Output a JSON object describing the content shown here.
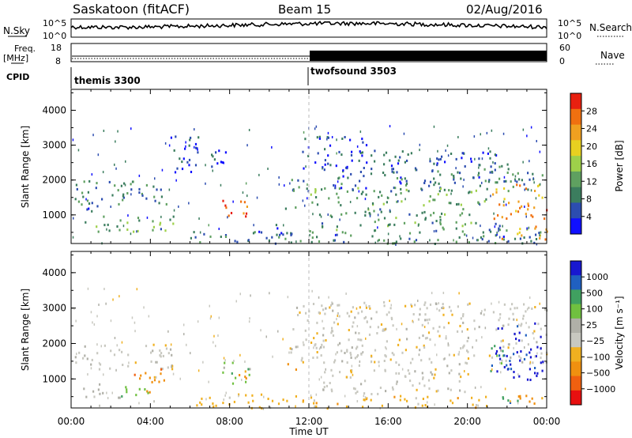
{
  "header": {
    "station": "Saskatoon (fitACF)",
    "beam": "Beam 15",
    "date": "02/Aug/2016"
  },
  "strips": {
    "nsky_label": "N.Sky",
    "nsky_tick_top": "10^5",
    "nsky_tick_bottom": "10^0",
    "nsearch_label": "N.Search",
    "nsearch_tick_top": "10^5",
    "nsearch_tick_bottom": "10^0",
    "freq_label_1": "Freq.",
    "freq_label_2": "[MHz]",
    "freq_tick_top": "18",
    "freq_tick_bottom": "8",
    "nave_label": "Nave",
    "nave_tick_top": "60",
    "nave_tick_bottom": "0",
    "cpid_label": "CPID",
    "cpid_1": "themis 3300",
    "cpid_2": "twofsound 3503"
  },
  "colors": {
    "power": [
      "#1010ff",
      "#2c4db0",
      "#3b7d5e",
      "#5fa060",
      "#9ed04a",
      "#e8d020",
      "#f0a020",
      "#f07010",
      "#e82010"
    ],
    "velocity": [
      "#e81010",
      "#f06010",
      "#f09010",
      "#f0b020",
      "#c8c8c0",
      "#b0b0a8",
      "#70c040",
      "#40a060",
      "#2060c0",
      "#1818d0"
    ]
  },
  "chart_data": [
    {
      "type": "heatmap",
      "name": "power",
      "ylabel": "Slant Range [km]",
      "xlabel": "Time UT",
      "xlim": [
        "00:00",
        "00:00"
      ],
      "ylim": [
        180,
        4600
      ],
      "xticks": [
        "00:00",
        "04:00",
        "08:00",
        "12:00",
        "16:00",
        "20:00",
        "00:00"
      ],
      "yticks": [
        "1000",
        "2000",
        "3000",
        "4000"
      ],
      "colorbar": {
        "label": "Power [dB]",
        "ticks": [
          "4",
          "8",
          "12",
          "16",
          "20",
          "24",
          "28"
        ],
        "range": [
          0,
          32
        ]
      },
      "regions": [
        {
          "t0": 0.1,
          "t1": 5.2,
          "r0": 1300,
          "r1": 2000,
          "level": 9
        },
        {
          "t0": 0.6,
          "t1": 5.3,
          "r0": 550,
          "r1": 1000,
          "level": 12
        },
        {
          "t0": 0.1,
          "t1": 1.6,
          "r0": 1100,
          "r1": 1300,
          "level": 6
        },
        {
          "t0": 7.6,
          "t1": 9.0,
          "r0": 900,
          "r1": 1500,
          "level": 26
        },
        {
          "t0": 5.0,
          "t1": 6.4,
          "r0": 2000,
          "r1": 3300,
          "level": 5
        },
        {
          "t0": 7.0,
          "t1": 8.0,
          "r0": 2200,
          "r1": 3000,
          "level": 4
        },
        {
          "t0": 6.0,
          "t1": 12.0,
          "r0": 200,
          "r1": 550,
          "level": 8
        },
        {
          "t0": 9.3,
          "t1": 11.3,
          "r0": 450,
          "r1": 800,
          "level": 6
        },
        {
          "t0": 10.7,
          "t1": 11.4,
          "r0": 1200,
          "r1": 1450,
          "level": 10
        },
        {
          "t0": 11.0,
          "t1": 23.8,
          "r0": 1700,
          "r1": 2300,
          "level": 8
        },
        {
          "t0": 11.5,
          "t1": 15.0,
          "r0": 2300,
          "r1": 3300,
          "level": 5
        },
        {
          "t0": 12.0,
          "t1": 21.0,
          "r0": 1300,
          "r1": 1800,
          "level": 13
        },
        {
          "t0": 12.5,
          "t1": 20.5,
          "r0": 600,
          "r1": 1200,
          "level": 11
        },
        {
          "t0": 12.0,
          "t1": 24.0,
          "r0": 200,
          "r1": 600,
          "level": 9
        },
        {
          "t0": 15.0,
          "t1": 21.5,
          "r0": 2300,
          "r1": 2900,
          "level": 6
        },
        {
          "t0": 21.2,
          "t1": 24.0,
          "r0": 900,
          "r1": 1900,
          "level": 24
        },
        {
          "t0": 20.8,
          "t1": 23.0,
          "r0": 1900,
          "r1": 2600,
          "level": 10
        },
        {
          "t0": 21.5,
          "t1": 24.0,
          "r0": 300,
          "r1": 700,
          "level": 22
        },
        {
          "t0": 21.0,
          "t1": 22.5,
          "r0": 400,
          "r1": 800,
          "level": 7
        }
      ]
    },
    {
      "type": "heatmap",
      "name": "velocity",
      "ylabel": "Slant Range [km]",
      "xlabel": "Time UT",
      "xlim": [
        "00:00",
        "00:00"
      ],
      "ylim": [
        180,
        4600
      ],
      "xticks": [
        "00:00",
        "04:00",
        "08:00",
        "12:00",
        "16:00",
        "20:00",
        "00:00"
      ],
      "yticks": [
        "1000",
        "2000",
        "3000",
        "4000"
      ],
      "colorbar": {
        "label": "Velocity [m s⁻¹]",
        "ticks": [
          "1000",
          "500",
          "100",
          "25",
          "−25",
          "−100",
          "−500",
          "−1000"
        ]
      },
      "regions": [
        {
          "t0": 0.1,
          "t1": 5.2,
          "r0": 1300,
          "r1": 2000,
          "cls": 4
        },
        {
          "t0": 3.1,
          "t1": 4.7,
          "r0": 600,
          "r1": 1300,
          "cls": 2
        },
        {
          "t0": 2.5,
          "t1": 4.0,
          "r0": 500,
          "r1": 900,
          "cls": 6
        },
        {
          "t0": 0.6,
          "t1": 2.5,
          "r0": 500,
          "r1": 900,
          "cls": 5
        },
        {
          "t0": 7.6,
          "t1": 8.5,
          "r0": 900,
          "r1": 1500,
          "cls": 6
        },
        {
          "t0": 8.5,
          "t1": 9.2,
          "r0": 900,
          "r1": 1400,
          "cls": 6
        },
        {
          "t0": 8.1,
          "t1": 8.8,
          "r0": 950,
          "r1": 1350,
          "cls": 2
        },
        {
          "t0": 10.8,
          "t1": 11.4,
          "r0": 1200,
          "r1": 1450,
          "cls": 2
        },
        {
          "t0": 6.0,
          "t1": 12.0,
          "r0": 200,
          "r1": 600,
          "cls": 3
        },
        {
          "t0": 11.0,
          "t1": 24.0,
          "r0": 1400,
          "r1": 3200,
          "cls": 4
        },
        {
          "t0": 12.0,
          "t1": 21.0,
          "r0": 200,
          "r1": 550,
          "cls": 3
        },
        {
          "t0": 12.5,
          "t1": 20.5,
          "r0": 600,
          "r1": 1300,
          "cls": 4
        },
        {
          "t0": 21.4,
          "t1": 23.8,
          "r0": 1000,
          "r1": 2600,
          "cls": 9
        },
        {
          "t0": 21.0,
          "t1": 22.0,
          "r0": 1200,
          "r1": 2000,
          "cls": 7
        },
        {
          "t0": 22.5,
          "t1": 24.0,
          "r0": 300,
          "r1": 700,
          "cls": 2
        },
        {
          "t0": 21.3,
          "t1": 22.6,
          "r0": 350,
          "r1": 650,
          "cls": 7
        }
      ]
    }
  ]
}
